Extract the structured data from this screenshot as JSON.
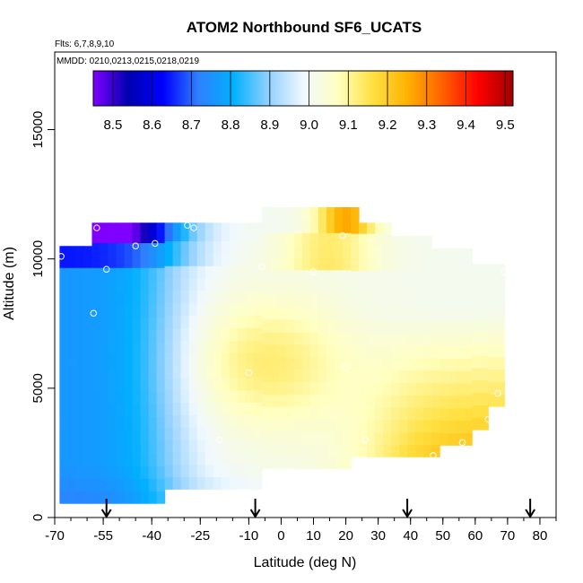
{
  "chart_data": {
    "type": "heatmap",
    "title": "ATOM2 Northbound SF6_UCATS",
    "notes": [
      "Flts: 6,7,8,9,10",
      "MMDD: 0210,0213,0215,0218,0219"
    ],
    "xlabel": "Latitude (deg N)",
    "ylabel": "Altitude (m)",
    "xlim": [
      -70,
      85
    ],
    "ylim": [
      0,
      18000
    ],
    "x_ticks": [
      -70,
      -55,
      -40,
      -25,
      -10,
      0,
      10,
      20,
      30,
      40,
      50,
      60,
      70,
      80
    ],
    "x_tick_labels": [
      "-70",
      "-55",
      "-40",
      "-25",
      "-10",
      "0",
      "10",
      "20",
      "30",
      "40",
      "50",
      "60",
      "70",
      "80"
    ],
    "y_ticks": [
      0,
      5000,
      10000,
      15000
    ],
    "y_tick_labels": [
      "0",
      "5000",
      "10000",
      "15000"
    ],
    "colorbar": {
      "min": 8.45,
      "max": 9.52,
      "ticks": [
        8.5,
        8.6,
        8.7,
        8.8,
        8.9,
        9.0,
        9.1,
        9.2,
        9.3,
        9.4,
        9.5
      ],
      "tick_labels": [
        "8.5",
        "8.6",
        "8.7",
        "8.8",
        "8.9",
        "9.0",
        "9.1",
        "9.2",
        "9.3",
        "9.4",
        "9.5"
      ]
    },
    "arrows_latitude": [
      -54,
      -8,
      39,
      77
    ],
    "observation_points": [
      {
        "lat": -57,
        "alt": 11200
      },
      {
        "lat": -29,
        "alt": 11300
      },
      {
        "lat": -27,
        "alt": 11200
      },
      {
        "lat": -68,
        "alt": 10100
      },
      {
        "lat": -45,
        "alt": 10500
      },
      {
        "lat": -39,
        "alt": 10600
      },
      {
        "lat": -54,
        "alt": 9600
      },
      {
        "lat": -6,
        "alt": 9700
      },
      {
        "lat": 10,
        "alt": 9500
      },
      {
        "lat": 19,
        "alt": 10900
      },
      {
        "lat": 69,
        "alt": 9500
      },
      {
        "lat": -58,
        "alt": 7900
      },
      {
        "lat": -10,
        "alt": 5600
      },
      {
        "lat": 20,
        "alt": 5800
      },
      {
        "lat": 67,
        "alt": 4800
      },
      {
        "lat": 64,
        "alt": 3800
      },
      {
        "lat": -19,
        "alt": 3000
      },
      {
        "lat": 26,
        "alt": 3000
      },
      {
        "lat": 56,
        "alt": 2900
      },
      {
        "lat": 47,
        "alt": 2400
      }
    ]
  },
  "colors": {
    "scale": [
      "#8000ff",
      "#0000b0",
      "#0000ff",
      "#2f7fff",
      "#00b0ff",
      "#90d0ff",
      "#f0f8ff",
      "#ffffc0",
      "#ffe040",
      "#ffb000",
      "#ff6000",
      "#ff0000",
      "#a00000"
    ]
  }
}
